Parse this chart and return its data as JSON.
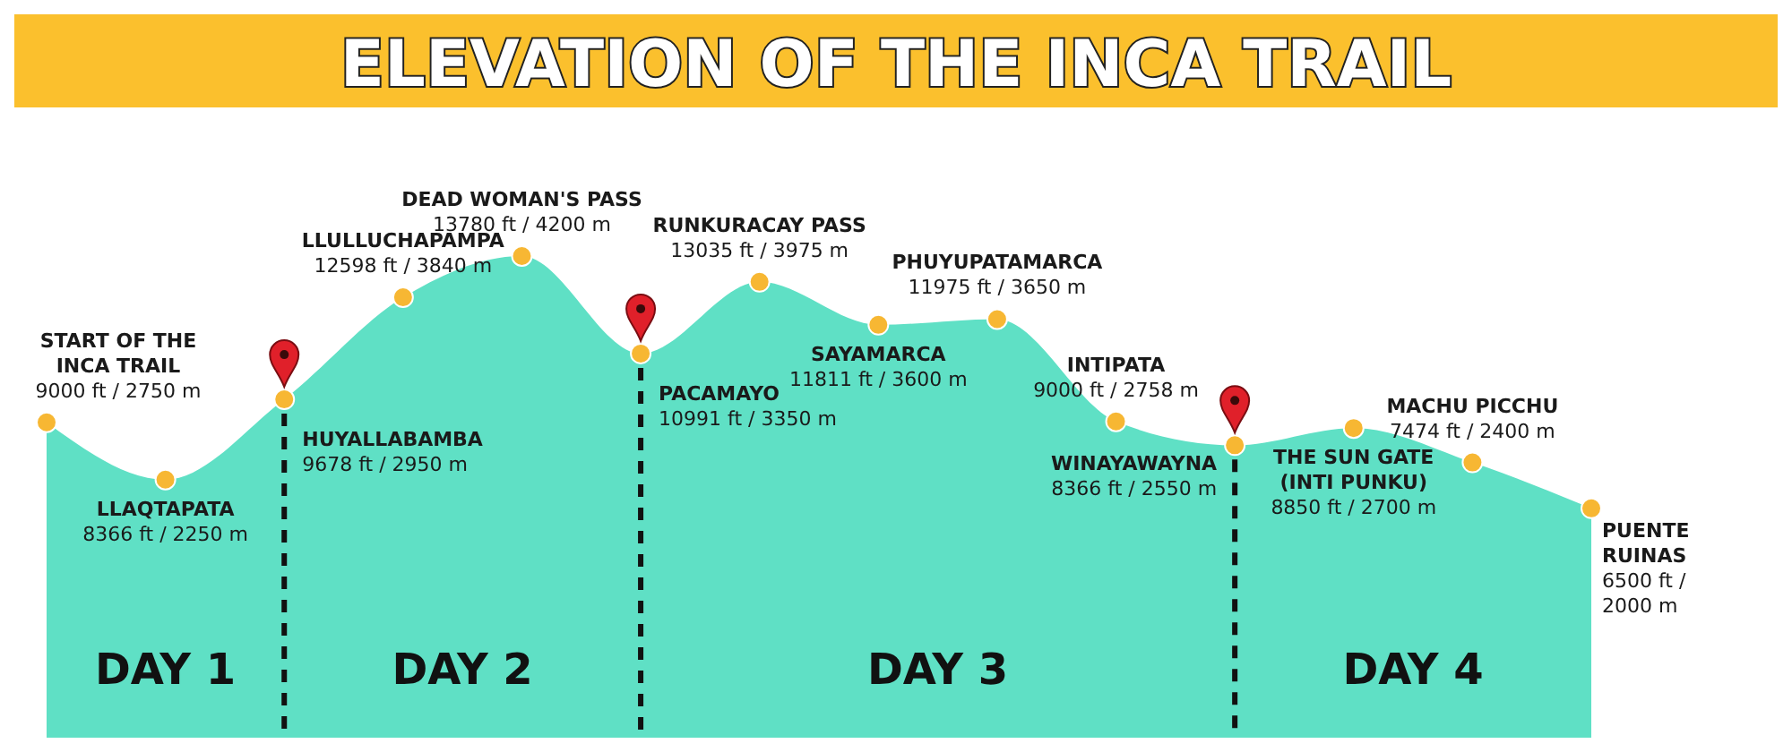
{
  "chart_data": {
    "type": "area",
    "title": "ELEVATION OF THE INCA TRAIL",
    "categories": [
      null,
      null,
      null,
      null,
      null,
      null,
      null,
      null,
      null,
      null,
      null,
      null,
      null,
      null
    ],
    "series": [
      {
        "color": "#5fe0c5",
        "values": [
          2750,
          2250,
          2950,
          3840,
          4200,
          3350,
          3975,
          3600,
          3650,
          2758,
          2550,
          2700,
          2400,
          2000
        ],
        "value_labels": [
          "START OF THE\nINCA TRAIL\n9000 ft / 2750 m",
          "LLAQTAPATA\n8366 ft / 2250 m",
          "HUYALLABAMBA\n9678 ft / 2950 m",
          "LLULLUCHAPAMPA\n12598 ft / 3840 m",
          "DEAD WOMAN'S PASS\n13780 ft / 4200 m",
          "PACAMAYO\n10991 ft / 3350 m",
          "RUNKURACAY PASS\n13035 ft / 3975 m",
          "SAYAMARCA\n11811 ft / 3600 m",
          "PHUYUPATAMARCA\n11975 ft / 3650 m",
          "INTIPATA\n9000 ft / 2758 m",
          "WINAYAWAYNA\n8366 ft / 2550 m",
          "THE SUN GATE\n(INTI PUNKU)\n8850 ft / 2700 m",
          "MACHU PICCHU\n7474 ft / 2400 m",
          "PUENTE\nRUINAS\n6500 ft /\n2000 m"
        ]
      }
    ],
    "marker": "circle",
    "annotations": [
      "DAY 1",
      "DAY 2",
      "DAY 3",
      "DAY 4"
    ]
  }
}
